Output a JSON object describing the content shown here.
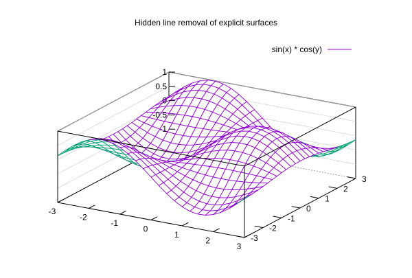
{
  "chart_data": {
    "type": "surface",
    "title": "Hidden line removal of explicit surfaces",
    "function": "sin(x) * cos(y)",
    "series": [
      {
        "name": "sin(x) * cos(y)",
        "color": "#9400d3",
        "underside_color": "#009e73"
      }
    ],
    "x": {
      "range": [
        -3,
        3
      ],
      "ticks": [
        -3,
        -2,
        -1,
        0,
        1,
        2,
        3
      ],
      "tick_labels": [
        "-3",
        "-2",
        "-1",
        "0",
        "1",
        "2",
        "3"
      ]
    },
    "y": {
      "range": [
        -3,
        3
      ],
      "ticks": [
        -3,
        -2,
        -1,
        0,
        1,
        2,
        3
      ],
      "tick_labels": [
        "-3",
        "-2",
        "-1",
        "0",
        "1",
        "2",
        "3"
      ]
    },
    "z": {
      "range": [
        -1,
        1
      ],
      "ticks": [
        -1,
        -0.5,
        0,
        0.5,
        1
      ],
      "tick_labels": [
        "-1",
        "-0.5",
        "0",
        "0.5",
        "1"
      ]
    },
    "grid_samples": 24,
    "hidden_line_removal": true,
    "grid": false,
    "legend": "top-right",
    "legend_entries": [
      "sin(x) * cos(y)"
    ]
  }
}
